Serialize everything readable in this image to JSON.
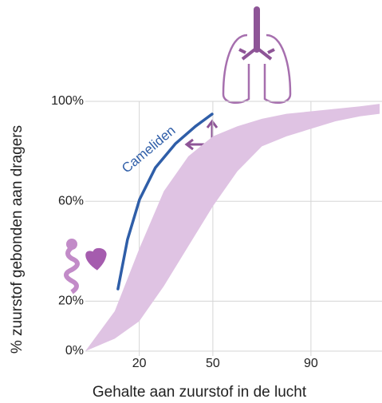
{
  "chart_data": {
    "type": "line",
    "x_label": "Gehalte aan zuurstof in de lucht",
    "y_label": "% zuurstof gebonden aan dragers",
    "xlim": [
      -2,
      118
    ],
    "ylim": [
      0,
      100
    ],
    "xticks": [
      20,
      50,
      90
    ],
    "yticks": [
      {
        "value": 0,
        "label": "0%"
      },
      {
        "value": 20,
        "label": "20%"
      },
      {
        "value": 60,
        "label": "60%"
      },
      {
        "value": 100,
        "label": "100%"
      }
    ],
    "grid": true,
    "series": [
      {
        "name": "Cameliden",
        "color": "#2f5ea8",
        "x": [
          11.3,
          15.2,
          20.1,
          26.6,
          34.7,
          42.9,
          49.7
        ],
        "values": [
          24.9,
          44.7,
          60.7,
          73.5,
          83,
          90,
          94.9
        ]
      }
    ],
    "band": {
      "color": "#dfc3e3",
      "x": [
        -2,
        10,
        20,
        30,
        40,
        50,
        60,
        70,
        80,
        90,
        100,
        110,
        118
      ],
      "upper": [
        0,
        16,
        41,
        64,
        78,
        86,
        90,
        93,
        95,
        96,
        97,
        98,
        99
      ],
      "lower": [
        0,
        5,
        12,
        26,
        42,
        58,
        72,
        82,
        86,
        89,
        92,
        94,
        95
      ]
    }
  }
}
